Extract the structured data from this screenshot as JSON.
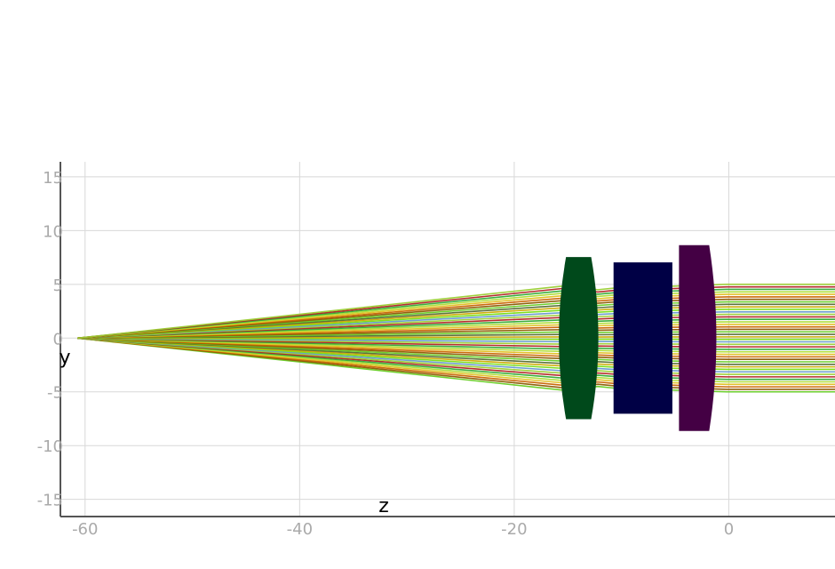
{
  "chart_data": {
    "type": "ray-trace",
    "xlabel": "z",
    "ylabel": "y",
    "xlim": [
      -62.3,
      9.9
    ],
    "ylim": [
      -16.6,
      16.4
    ],
    "x_ticks": [
      -60,
      -40,
      -20,
      0
    ],
    "y_ticks": [
      15,
      10,
      5,
      0,
      -5,
      -10,
      -15
    ],
    "x_tick_labels": [
      "-60",
      "-40",
      "-20",
      "0"
    ],
    "y_tick_labels": [
      "15",
      "10",
      "5",
      "0",
      "-5",
      "-10",
      "-15"
    ],
    "grid": true,
    "source_point": {
      "z": -60.7,
      "y": 0
    },
    "lenses": [
      {
        "name": "lens-1",
        "z_left": -15.8,
        "z_right": -12.2,
        "aperture": 7.5,
        "left_curv": "convex",
        "right_curv": "convex",
        "color": "#00491b"
      },
      {
        "name": "lens-2",
        "z_left": -10.7,
        "z_right": -5.3,
        "aperture": 7.0,
        "left_curv": "flat",
        "right_curv": "flat",
        "color": "#000045"
      },
      {
        "name": "lens-3",
        "z_left": -4.6,
        "z_right": -1.2,
        "aperture": 8.6,
        "left_curv": "flat",
        "right_curv": "convex",
        "color": "#440044"
      }
    ],
    "ray_bundle": {
      "count": 44,
      "max_height": 5.0,
      "colors": [
        "#66cc22",
        "#8b5a00",
        "#c86400",
        "#e0c020",
        "#aadd33",
        "#33aa33",
        "#b22222",
        "#9acd32",
        "#6699cc",
        "#77dd11",
        "#ccaa00",
        "#556b2f"
      ]
    }
  }
}
